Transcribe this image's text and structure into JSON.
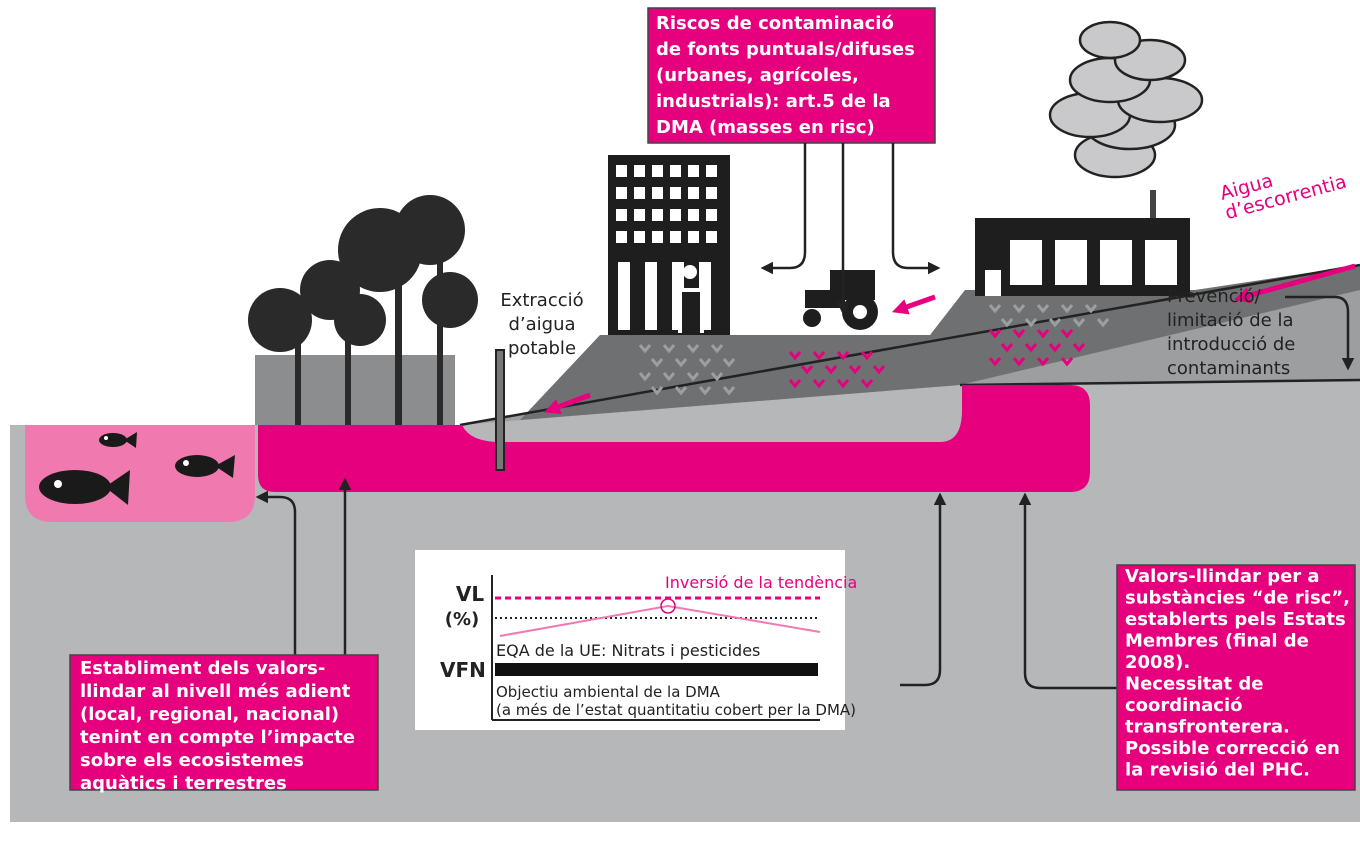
{
  "top_box": {
    "lines": [
      "Riscos de contaminació",
      "de fonts puntuals/difuses",
      "(urbanes, agrícoles,",
      "industrials): art.5 de la",
      "DMA (masses en risc)"
    ]
  },
  "runoff": {
    "lines": [
      "Aigua",
      "d’escorrentia"
    ]
  },
  "extraction": {
    "lines": [
      "Extracció",
      "d’aigua",
      "potable"
    ]
  },
  "prevention": {
    "lines": [
      "Prevenció/",
      "limitació de la",
      "introducció de",
      "contaminants"
    ]
  },
  "left_box": {
    "lines": [
      "Establiment dels valors-",
      "llindar al nivell més adient",
      "(local, regional, nacional)",
      "tenint en compte l’impacte",
      "sobre els ecosistemes",
      "aquàtics i terrestres"
    ]
  },
  "right_box": {
    "lines": [
      "Valors-llindar per a",
      "substàncies “de risc”,",
      "establerts pels Estats",
      "Membres (final de",
      "2008).",
      "Necessitat de",
      "coordinació",
      "transfronterera.",
      "Possible correcció en",
      "la revisió del PHC."
    ]
  },
  "inset": {
    "vl": "VL",
    "percent": "(%)",
    "trend": "Inversió de la tendència",
    "eqa": "EQA de la UE: Nitrats i pesticides",
    "vfn": "VFN",
    "objective": {
      "lines": [
        "Objectiu ambiental de la DMA",
        "(a més de l’estat quantitatiu cobert per la DMA)"
      ]
    }
  }
}
